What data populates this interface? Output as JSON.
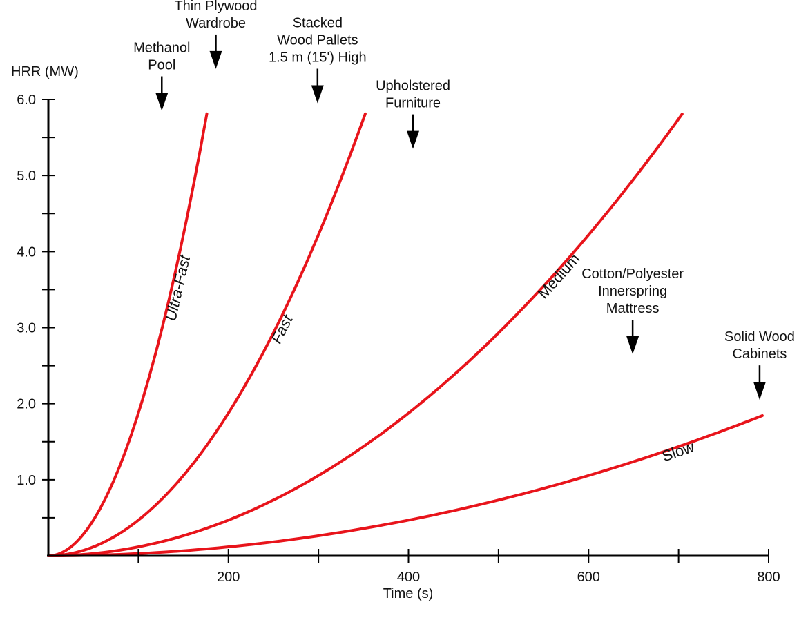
{
  "chart_data": {
    "type": "line",
    "xlabel": "Time (s)",
    "ylabel": "HRR (MW)",
    "xlim": [
      0,
      800
    ],
    "ylim": [
      0,
      6.0
    ],
    "x_ticks": [
      100,
      200,
      300,
      400,
      500,
      600,
      700,
      800
    ],
    "x_tick_labels": [
      "200",
      "400",
      "600",
      "800"
    ],
    "x_labeled_ticks": [
      200,
      400,
      600,
      800
    ],
    "y_ticks": [
      0.5,
      1.0,
      1.5,
      2.0,
      2.5,
      3.0,
      3.5,
      4.0,
      4.5,
      5.0,
      5.5,
      6.0
    ],
    "y_tick_labels": [
      "1.0",
      "2.0",
      "3.0",
      "4.0",
      "5.0",
      "6.0"
    ],
    "y_labeled_ticks": [
      1.0,
      2.0,
      3.0,
      4.0,
      5.0,
      6.0
    ],
    "grid": false,
    "line_color": "#e8141b",
    "series": [
      {
        "name": "Ultra-Fast",
        "alpha": 0.1876,
        "t_end": 176
      },
      {
        "name": "Fast",
        "alpha": 0.0469,
        "t_end": 352
      },
      {
        "name": "Medium",
        "alpha": 0.01172,
        "t_end": 704
      },
      {
        "name": "Slow",
        "alpha": 0.00293,
        "t_end": 793
      }
    ],
    "annotations": [
      {
        "lines": [
          "Methanol",
          "Pool"
        ],
        "x": 126,
        "y": 5.85
      },
      {
        "lines": [
          "Thin Plywood",
          "Wardrobe"
        ],
        "x": 186,
        "y": 6.4
      },
      {
        "lines": [
          "Stacked",
          "Wood Pallets",
          "1.5 m (15') High"
        ],
        "x": 299,
        "y": 5.95
      },
      {
        "lines": [
          "Upholstered",
          "Furniture"
        ],
        "x": 405,
        "y": 5.35
      },
      {
        "lines": [
          "Cotton/Polyester",
          "Innerspring",
          "Mattress"
        ],
        "x": 649,
        "y": 2.65
      },
      {
        "lines": [
          "Solid Wood",
          "Cabinets"
        ],
        "x": 790,
        "y": 2.05
      }
    ]
  }
}
